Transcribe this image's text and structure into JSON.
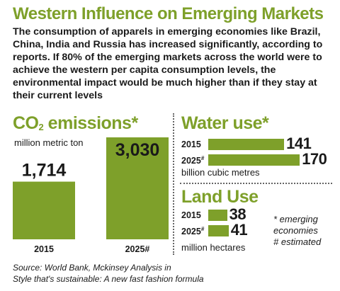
{
  "title": "Western Influence on Emerging Markets",
  "intro": "The consumption of apparels in emerging economies like Brazil, China, India and Russia has increased significantly, according to reports. If 80% of the emerging markets across the world were to achieve the western per capita consumption levels, the environmental impact would be much higher than if they stay at their current levels",
  "colors": {
    "accent": "#7ea02a",
    "text": "#1a1a1a"
  },
  "co2": {
    "title_main": "CO",
    "title_sub": "2",
    "title_rest": " emissions*",
    "unit": "million metric ton"
  },
  "water": {
    "title": "Water use*",
    "unit": "billion cubic metres"
  },
  "land": {
    "title": "Land Use",
    "unit": "million hectares"
  },
  "note": {
    "line1": "* emerging",
    "line2": "economies",
    "line3": "# estimated"
  },
  "source": {
    "line1": "Source: World Bank, Mckinsey Analysis in",
    "line2": "Style that's sustainable: A new fast fashion formula"
  },
  "chart_data": [
    {
      "type": "bar",
      "categories": [
        "2015",
        "2025#"
      ],
      "values": [
        1714,
        3030
      ],
      "value_labels": [
        "1,714",
        "3,030"
      ],
      "title": "CO2 emissions*",
      "ylabel": "million metric ton"
    },
    {
      "type": "bar",
      "orientation": "horizontal",
      "categories": [
        "2015",
        "2025#"
      ],
      "values": [
        141,
        170
      ],
      "value_labels": [
        "141",
        "170"
      ],
      "title": "Water use*",
      "xlabel": "billion cubic metres"
    },
    {
      "type": "bar",
      "orientation": "horizontal",
      "categories": [
        "2015",
        "2025#"
      ],
      "values": [
        38,
        41
      ],
      "value_labels": [
        "38",
        "41"
      ],
      "title": "Land Use",
      "xlabel": "million hectares"
    }
  ]
}
